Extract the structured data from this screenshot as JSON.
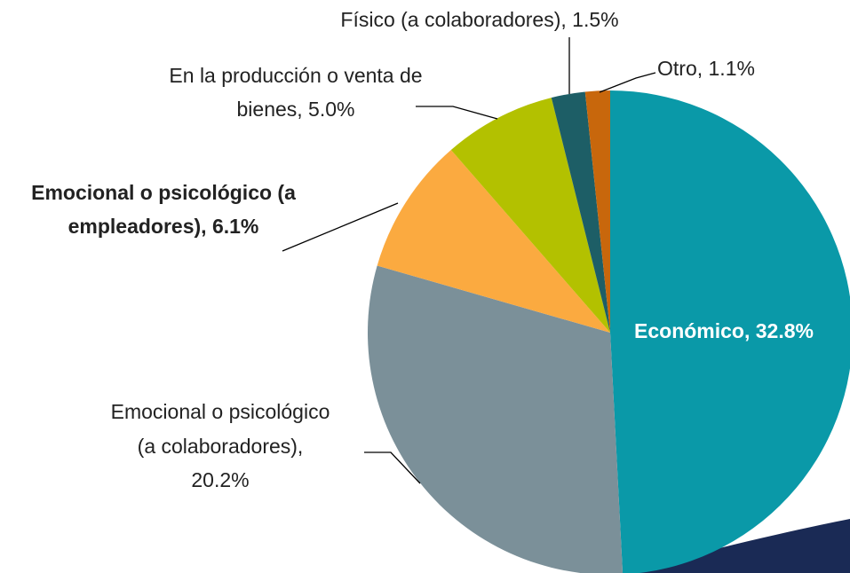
{
  "chart_data": {
    "type": "pie",
    "values": [
      32.8,
      20.2,
      6.1,
      5.0,
      1.5,
      1.1
    ],
    "value_labels": [
      [
        "Económico, 32.8%"
      ],
      [
        "Emocional o psicológico",
        "(a colaboradores),",
        "20.2%"
      ],
      [
        "Emocional o psicológico (a",
        "empleadores), 6.1%"
      ],
      [
        "En la producción o venta de",
        "bienes, 5.0%"
      ],
      [
        "Físico (a colaboradores), 1.5%"
      ],
      [
        "Otro, 1.1%"
      ]
    ],
    "colors": [
      "#0A99A8",
      "#7B9099",
      "#FBAA40",
      "#B3C100",
      "#1D5E66",
      "#C8670C"
    ]
  }
}
